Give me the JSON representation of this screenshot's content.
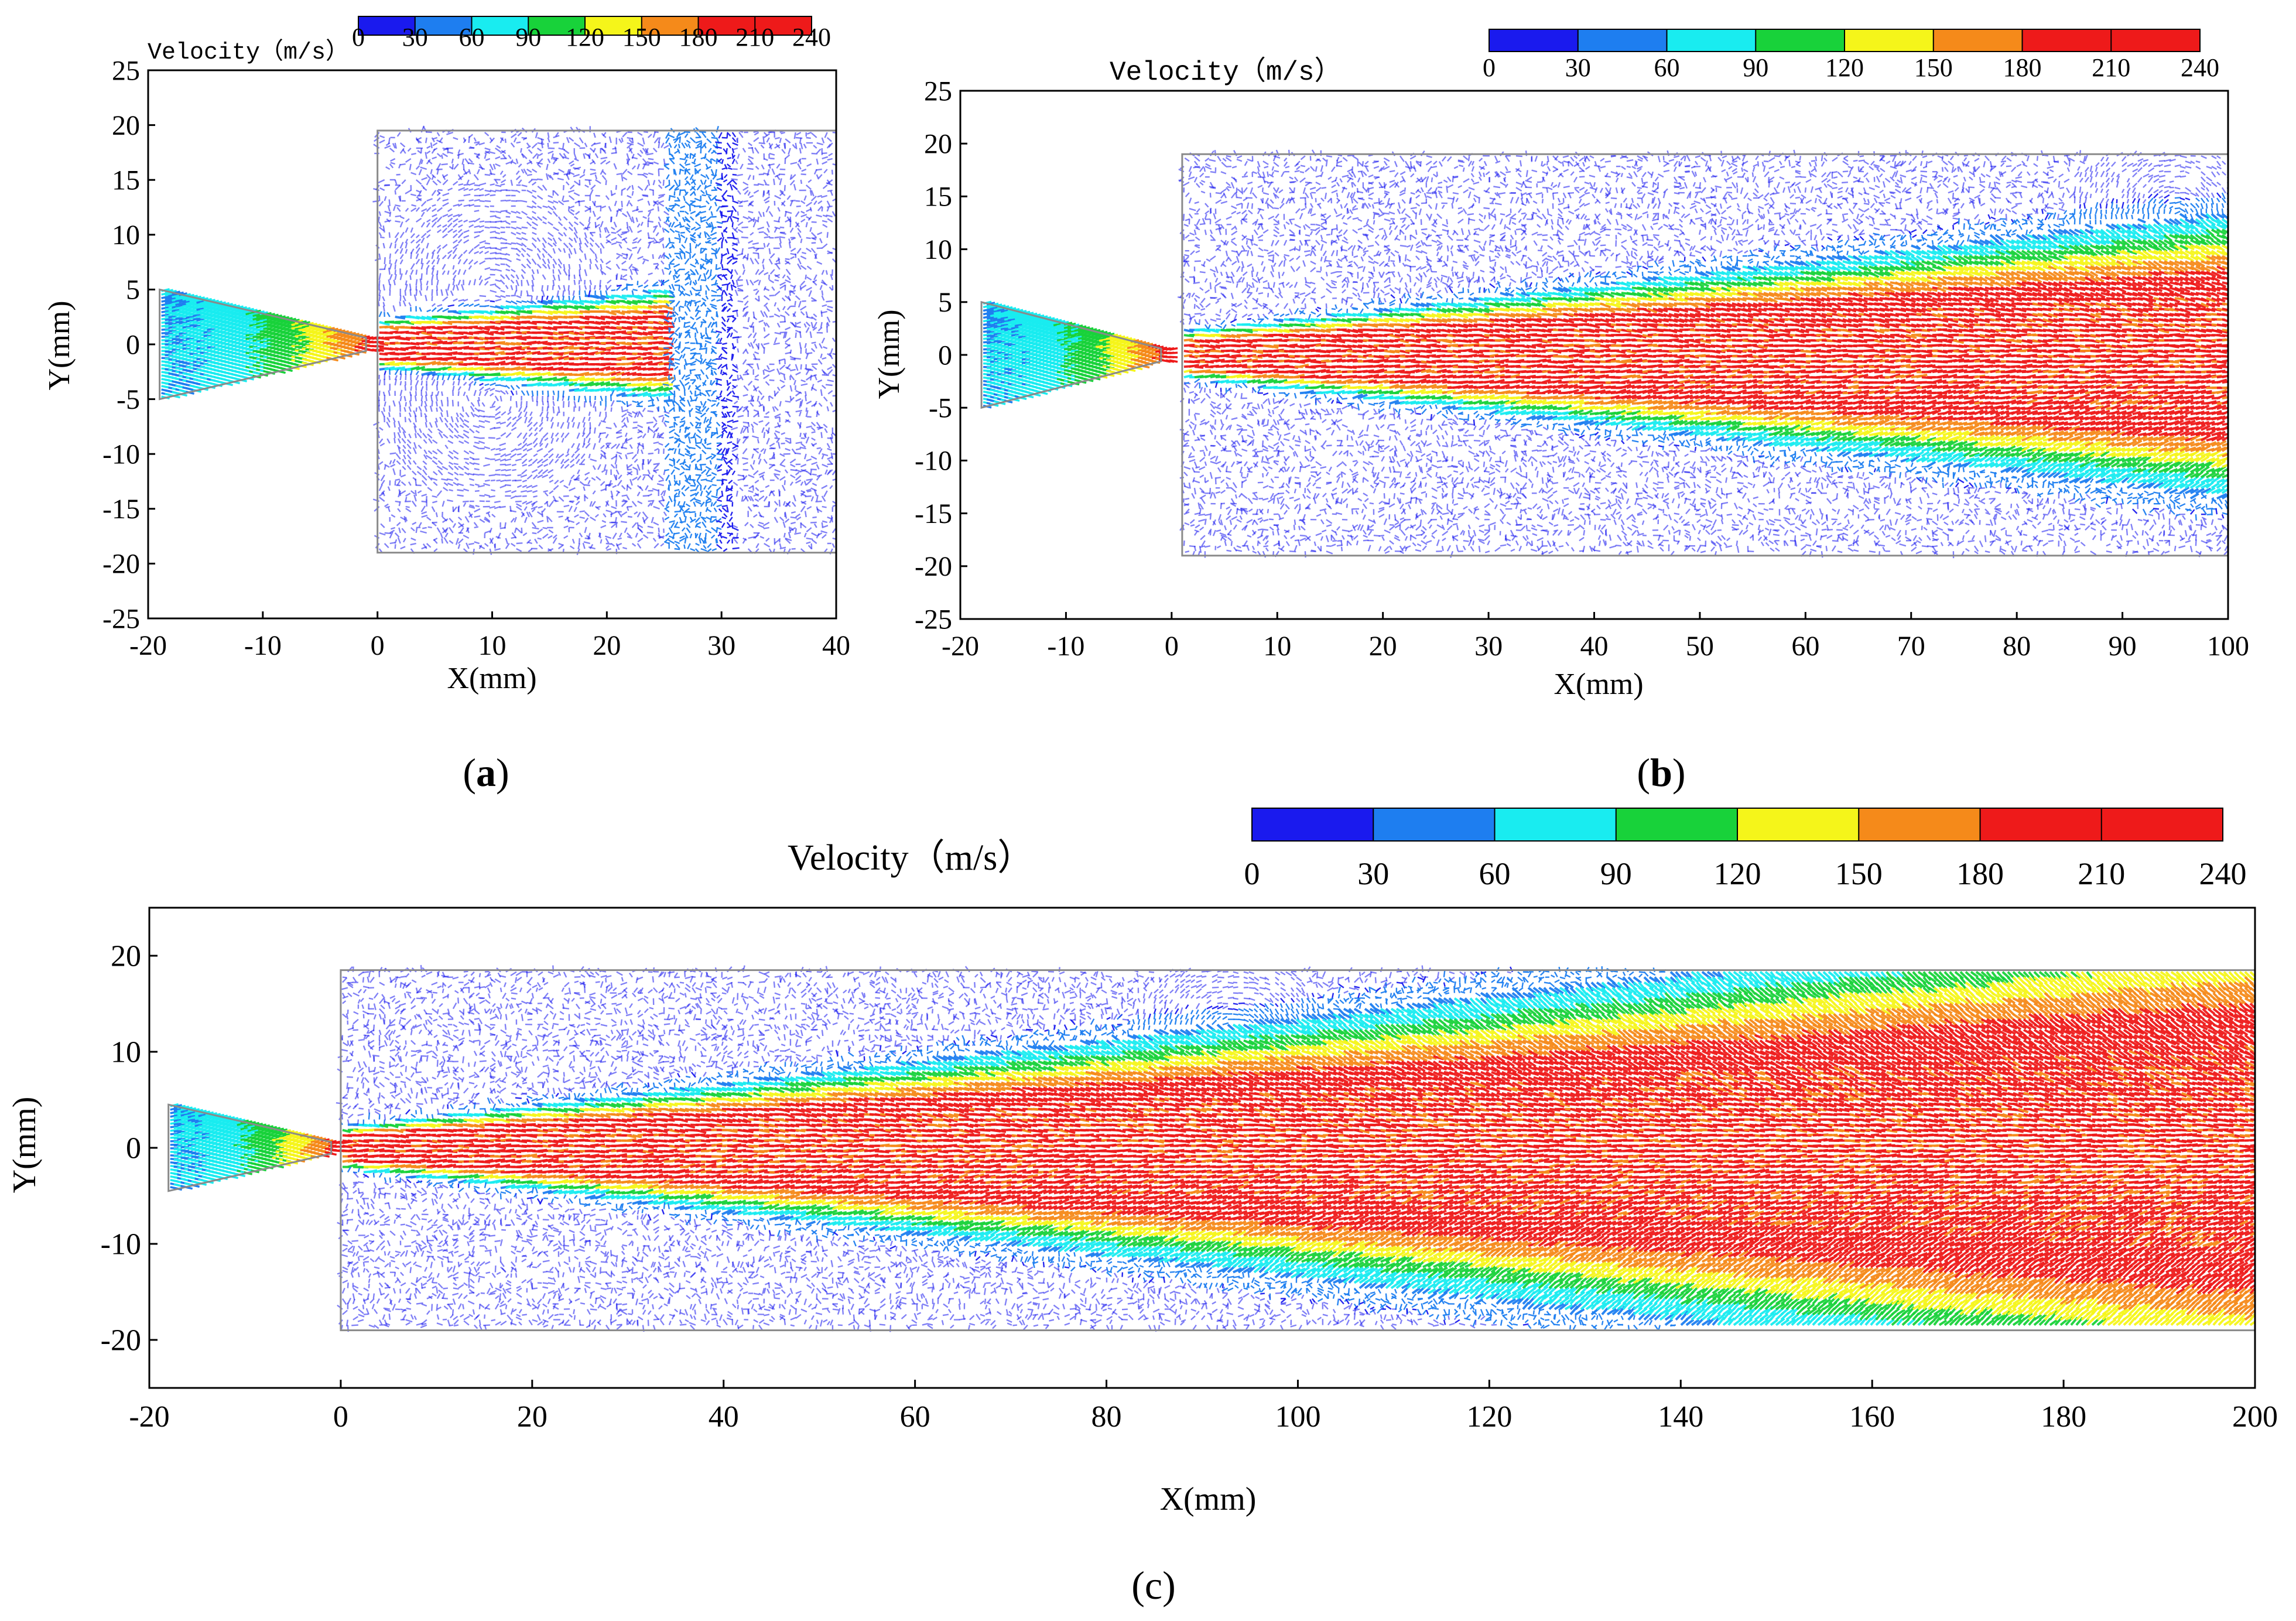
{
  "colorbar": {
    "title": "Velocity（m/s）",
    "ticks": [
      "0",
      "30",
      "60",
      "90",
      "120",
      "150",
      "180",
      "210",
      "240"
    ],
    "colors": [
      "#1a1aee",
      "#1e7ef0",
      "#19ecf0",
      "#18d23a",
      "#f5f51a",
      "#f58a1a",
      "#ee1a1a"
    ]
  },
  "panels": [
    {
      "id": "a",
      "caption_open": "(",
      "caption_letter": "a",
      "caption_close": ")",
      "xlabel": "X(mm)",
      "ylabel": "Y(mm)",
      "xticks": [
        "-20",
        "-10",
        "0",
        "10",
        "20",
        "30",
        "40"
      ],
      "yticks": [
        "25",
        "20",
        "15",
        "10",
        "5",
        "0",
        "-5",
        "-10",
        "-15",
        "-20",
        "-25"
      ]
    },
    {
      "id": "b",
      "caption_open": "(",
      "caption_letter": "b",
      "caption_close": ")",
      "xlabel": "X(mm)",
      "ylabel": "Y(mm)",
      "xticks": [
        "-20",
        "-10",
        "0",
        "10",
        "20",
        "30",
        "40",
        "50",
        "60",
        "70",
        "80",
        "90",
        "100"
      ],
      "yticks": [
        "25",
        "20",
        "15",
        "10",
        "5",
        "0",
        "-5",
        "-10",
        "-15",
        "-20",
        "-25"
      ]
    },
    {
      "id": "c",
      "caption_open": "(",
      "caption_letter": "c",
      "caption_close": ")",
      "xlabel": "X(mm)",
      "ylabel": "Y(mm)",
      "xticks": [
        "-20",
        "0",
        "20",
        "40",
        "60",
        "80",
        "100",
        "120",
        "140",
        "160",
        "180",
        "200"
      ],
      "yticks": [
        "20",
        "10",
        "0",
        "-10",
        "-20"
      ]
    }
  ],
  "chart_data": [
    {
      "type": "heatmap",
      "subtype": "velocity vector field",
      "xlabel": "X(mm)",
      "ylabel": "Y(mm)",
      "xlim": [
        -20,
        40
      ],
      "ylim": [
        -25,
        25
      ],
      "colorbar": {
        "label": "Velocity（m/s）",
        "range": [
          0,
          240
        ],
        "levels": [
          0,
          30,
          60,
          90,
          120,
          150,
          180,
          210,
          240
        ]
      },
      "nozzle": {
        "inlet_x": -19,
        "inlet_half_height": 5,
        "throat_x": -1,
        "throat_half_height": 0.6
      },
      "chamber": {
        "x": [
          0,
          40
        ],
        "y": [
          -19,
          19.5
        ]
      },
      "jet": {
        "core_velocity_max": 230,
        "core_end_x": 25,
        "vortices": [
          {
            "x": 10,
            "y": 5
          },
          {
            "x": 10,
            "y": -5
          }
        ]
      }
    },
    {
      "type": "heatmap",
      "subtype": "velocity vector field",
      "xlabel": "X(mm)",
      "ylabel": "Y(mm)",
      "xlim": [
        -20,
        100
      ],
      "ylim": [
        -25,
        25
      ],
      "colorbar": {
        "label": "Velocity（m/s）",
        "range": [
          0,
          240
        ],
        "levels": [
          0,
          30,
          60,
          90,
          120,
          150,
          180,
          210,
          240
        ]
      },
      "nozzle": {
        "inlet_x": -18,
        "inlet_half_height": 5,
        "throat_x": -1,
        "throat_half_height": 0.6
      },
      "chamber": {
        "x": [
          1,
          100
        ],
        "y": [
          -19,
          19
        ]
      },
      "jet": {
        "core_velocity_max": 230,
        "core_end_x": 100,
        "vortices": [
          {
            "x": 95,
            "y": 13
          }
        ]
      }
    },
    {
      "type": "heatmap",
      "subtype": "velocity vector field",
      "xlabel": "X(mm)",
      "ylabel": "Y(mm)",
      "xlim": [
        -20,
        200
      ],
      "ylim": [
        -25,
        25
      ],
      "colorbar": {
        "label": "Velocity（m/s）",
        "range": [
          0,
          240
        ],
        "levels": [
          0,
          30,
          60,
          90,
          120,
          150,
          180,
          210,
          240
        ]
      },
      "nozzle": {
        "inlet_x": -18,
        "inlet_half_height": 4.5,
        "throat_x": -1,
        "throat_half_height": 0.6
      },
      "chamber": {
        "x": [
          0,
          200
        ],
        "y": [
          -19,
          18.5
        ]
      },
      "jet": {
        "core_velocity_max": 230,
        "core_end_x": 200,
        "vortices": [
          {
            "x": 93,
            "y": 11
          }
        ]
      }
    }
  ]
}
